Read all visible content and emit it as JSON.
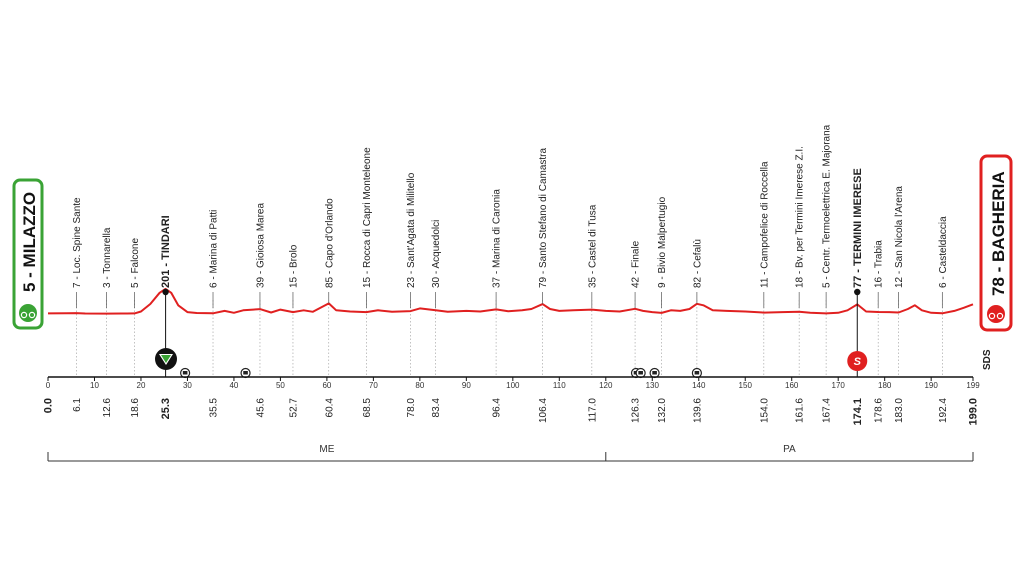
{
  "chart_data": {
    "type": "line",
    "xlim": [
      0,
      199
    ],
    "x_ticks": [
      0,
      10,
      20,
      30,
      40,
      50,
      60,
      70,
      80,
      90,
      100,
      110,
      120,
      130,
      140,
      150,
      160,
      170,
      180,
      190,
      199
    ],
    "start": {
      "label": "5 - MILAZZO",
      "km": "0.0",
      "elevation": 5
    },
    "finish": {
      "label": "78 - BAGHERIA",
      "km": "199.0",
      "elevation": 78
    },
    "waypoints": [
      {
        "km": 6.1,
        "km_label": "6.1",
        "label": "7 - Loc. Spine Sante",
        "elevation": 7
      },
      {
        "km": 12.6,
        "km_label": "12.6",
        "label": "3 - Tonnarella",
        "elevation": 3
      },
      {
        "km": 18.6,
        "km_label": "18.6",
        "label": "5 - Falcone",
        "elevation": 5
      },
      {
        "km": 25.3,
        "km_label": "25.3",
        "label": "201 - TINDARI",
        "elevation": 201,
        "bold": true
      },
      {
        "km": 35.5,
        "km_label": "35.5",
        "label": "6 - Marina di Patti",
        "elevation": 6
      },
      {
        "km": 45.6,
        "km_label": "45.6",
        "label": "39 - Gioiosa Marea",
        "elevation": 39
      },
      {
        "km": 52.7,
        "km_label": "52.7",
        "label": "15 - Brolo",
        "elevation": 15
      },
      {
        "km": 60.4,
        "km_label": "60.4",
        "label": "85 - Capo d'Orlando",
        "elevation": 85
      },
      {
        "km": 68.5,
        "km_label": "68.5",
        "label": "15 - Rocca di Capri Monteleone",
        "elevation": 15
      },
      {
        "km": 78.0,
        "km_label": "78.0",
        "label": "23 - Sant'Agata di Militello",
        "elevation": 23
      },
      {
        "km": 83.4,
        "km_label": "83.4",
        "label": "30 - Acquedolci",
        "elevation": 30
      },
      {
        "km": 96.4,
        "km_label": "96.4",
        "label": "37 - Marina di Caronia",
        "elevation": 37
      },
      {
        "km": 106.4,
        "km_label": "106.4",
        "label": "79 - Santo Stefano di Camastra",
        "elevation": 79
      },
      {
        "km": 117.0,
        "km_label": "117.0",
        "label": "35 - Castel di Tusa",
        "elevation": 35
      },
      {
        "km": 126.3,
        "km_label": "126.3",
        "label": "42 - Finale",
        "elevation": 42
      },
      {
        "km": 132.0,
        "km_label": "132.0",
        "label": "9 - Bivio Malpertugio",
        "elevation": 9
      },
      {
        "km": 139.6,
        "km_label": "139.6",
        "label": "82 - Cefalù",
        "elevation": 82
      },
      {
        "km": 154.0,
        "km_label": "154.0",
        "label": "11 - Campofelice di Roccella",
        "elevation": 11
      },
      {
        "km": 161.6,
        "km_label": "161.6",
        "label": "18 - Bv. per Termini Imerese Z.I.",
        "elevation": 18
      },
      {
        "km": 167.4,
        "km_label": "167.4",
        "label": "5 - Centr. Termoelettrica E. Majorana",
        "elevation": 5
      },
      {
        "km": 174.1,
        "km_label": "174.1",
        "label": "77 - TERMINI IMERESE",
        "elevation": 77,
        "bold": true
      },
      {
        "km": 178.6,
        "km_label": "178.6",
        "label": "16 - Trabia",
        "elevation": 16
      },
      {
        "km": 183.0,
        "km_label": "183.0",
        "label": "12 - San Nicola l'Arena",
        "elevation": 12
      },
      {
        "km": 192.4,
        "km_label": "192.4",
        "label": "6 - Casteldaccia",
        "elevation": 6
      }
    ],
    "profile": [
      [
        0,
        5
      ],
      [
        4,
        6
      ],
      [
        6.1,
        7
      ],
      [
        8,
        4
      ],
      [
        12.6,
        3
      ],
      [
        16,
        4
      ],
      [
        18.6,
        5
      ],
      [
        20,
        20
      ],
      [
        22,
        80
      ],
      [
        24,
        170
      ],
      [
        25.3,
        201
      ],
      [
        26.5,
        170
      ],
      [
        28,
        70
      ],
      [
        30,
        15
      ],
      [
        32,
        8
      ],
      [
        35.5,
        6
      ],
      [
        38,
        25
      ],
      [
        40,
        10
      ],
      [
        42,
        30
      ],
      [
        45.6,
        39
      ],
      [
        48,
        12
      ],
      [
        50,
        35
      ],
      [
        52.7,
        15
      ],
      [
        55,
        30
      ],
      [
        57,
        18
      ],
      [
        60.4,
        85
      ],
      [
        62,
        30
      ],
      [
        65,
        20
      ],
      [
        68.5,
        15
      ],
      [
        71,
        30
      ],
      [
        74,
        18
      ],
      [
        78,
        23
      ],
      [
        80,
        45
      ],
      [
        83.4,
        30
      ],
      [
        86,
        18
      ],
      [
        90,
        25
      ],
      [
        93,
        20
      ],
      [
        96.4,
        37
      ],
      [
        99,
        22
      ],
      [
        102,
        30
      ],
      [
        104,
        40
      ],
      [
        106.4,
        79
      ],
      [
        108,
        40
      ],
      [
        110,
        25
      ],
      [
        113,
        30
      ],
      [
        117,
        35
      ],
      [
        120,
        25
      ],
      [
        123,
        20
      ],
      [
        126.3,
        42
      ],
      [
        128,
        25
      ],
      [
        130,
        15
      ],
      [
        132,
        9
      ],
      [
        134,
        30
      ],
      [
        136,
        25
      ],
      [
        138,
        40
      ],
      [
        139.6,
        82
      ],
      [
        141,
        70
      ],
      [
        143,
        30
      ],
      [
        146,
        25
      ],
      [
        150,
        20
      ],
      [
        154,
        11
      ],
      [
        158,
        15
      ],
      [
        161.6,
        18
      ],
      [
        164,
        10
      ],
      [
        167.4,
        5
      ],
      [
        170,
        10
      ],
      [
        172,
        30
      ],
      [
        174.1,
        77
      ],
      [
        176,
        20
      ],
      [
        178.6,
        16
      ],
      [
        181,
        15
      ],
      [
        183,
        12
      ],
      [
        185,
        40
      ],
      [
        186.5,
        70
      ],
      [
        188,
        30
      ],
      [
        190,
        10
      ],
      [
        192.4,
        6
      ],
      [
        195,
        25
      ],
      [
        197,
        50
      ],
      [
        199,
        78
      ]
    ],
    "sprint": {
      "km": 174.1,
      "label": "S"
    },
    "kom": {
      "km": 25.3
    },
    "tunnels": [
      29.5,
      42.5,
      126.5,
      127.5,
      130.5,
      139.6
    ],
    "sds_label": "SDS",
    "regions": [
      {
        "label": "ME",
        "from": 0,
        "to": 120
      },
      {
        "label": "PA",
        "from": 120,
        "to": 199
      }
    ],
    "colors": {
      "profile_line": "#e02020",
      "start_border": "#3aa335",
      "finish_border": "#e02020",
      "sprint": "#e02020"
    }
  }
}
